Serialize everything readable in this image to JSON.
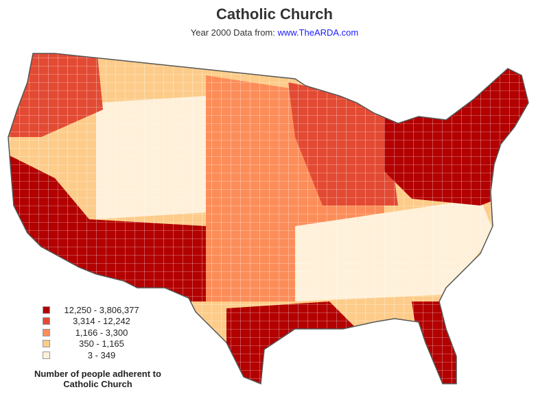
{
  "title": "Catholic Church",
  "subtitle": "Year 2000 Data from:",
  "source_link": "www.TheARDA.com",
  "legend": {
    "title": "Number of people adherent to Catholic Church",
    "items": [
      {
        "label": "12,250 - 3,806,377",
        "color": "#b30000"
      },
      {
        "label": "3,314 - 12,242",
        "color": "#e34a33"
      },
      {
        "label": "1,166 - 3,300",
        "color": "#fc8d59"
      },
      {
        "label": "350 - 1,165",
        "color": "#fdcc8a"
      },
      {
        "label": "3 - 349",
        "color": "#fef0d9"
      }
    ]
  }
}
